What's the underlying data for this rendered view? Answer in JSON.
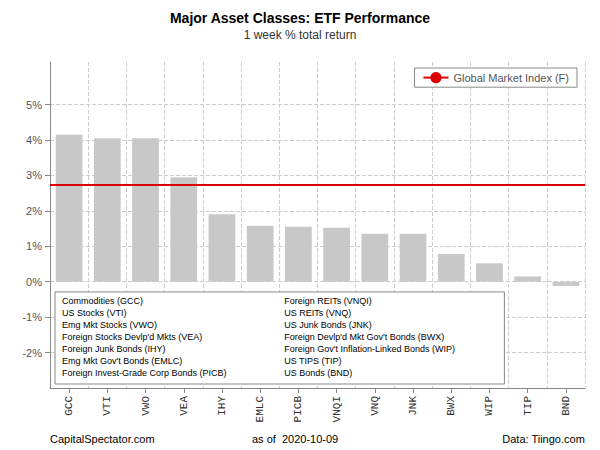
{
  "chart_data": {
    "type": "bar",
    "title": "Major Asset Classes: ETF Performance",
    "subtitle": "1 week % total return",
    "categories": [
      "GCC",
      "VTI",
      "VWO",
      "VEA",
      "IHY",
      "EMLC",
      "PICB",
      "VNQI",
      "VNQ",
      "JNK",
      "BWX",
      "WIP",
      "TIP",
      "BND"
    ],
    "values": [
      4.15,
      4.05,
      4.05,
      2.95,
      1.9,
      1.58,
      1.55,
      1.52,
      1.35,
      1.35,
      0.78,
      0.52,
      0.15,
      -0.12
    ],
    "color": "#c8c8c8",
    "reference_line": {
      "label": "Global Market Index (F)",
      "value": 2.75,
      "color": "#dd0000"
    },
    "legend": "upper right",
    "ylim": [
      -3,
      6.2
    ],
    "yticks": [
      {
        "value": -2,
        "label": "-2%"
      },
      {
        "value": -1,
        "label": "-1%"
      },
      {
        "value": 0,
        "label": "0%"
      },
      {
        "value": 1,
        "label": "1%"
      },
      {
        "value": 2,
        "label": "2%"
      },
      {
        "value": 3,
        "label": "3%"
      },
      {
        "value": 4,
        "label": "4%"
      },
      {
        "value": 5,
        "label": "5%"
      }
    ],
    "grid": true,
    "annotations": [
      "Commodities (GCC)",
      "US Stocks (VTI)",
      "Emg Mkt Stocks (VWO)",
      "Foreign Stocks Devlp'd Mkts (VEA)",
      "Foreign Junk Bonds (IHY)",
      "Emg Mkt Gov't Bonds (EMLC)",
      "Foreign Invest-Grade Corp Bonds (PICB)",
      "Foreign REITs (VNQI)",
      "US REITs (VNQ)",
      "US Junk Bonds (JNK)",
      "Foreign Devlp'd Mkt Gov't Bonds (BWX)",
      "Foreign Gov't Inflation-Linked Bonds (WIP)",
      "US TIPS (TIP)",
      "US Bonds (BND)"
    ],
    "footer": [
      "CapitalSpectator.com",
      "as of  2020-10-09",
      "Data: Tiingo.com"
    ]
  }
}
